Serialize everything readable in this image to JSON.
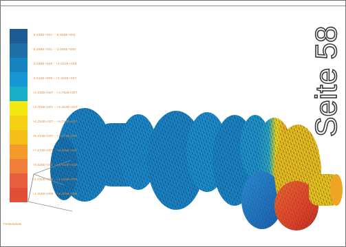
{
  "page_label": "Seite 58",
  "legend": {
    "caption": "Festensdosn",
    "entries": [
      {
        "color": "#1f5a96",
        "range": "-9.228E+001 - -5.968E+001"
      },
      {
        "color": "#1e6ea8",
        "range": "-5.968E+001 - -3.896E+000"
      },
      {
        "color": "#1784c2",
        "range": "-3.896E+000 - +4.510E+008"
      },
      {
        "color": "#1897d6",
        "range": "-4.510E+008 - +2.332E+007"
      },
      {
        "color": "#19afc9",
        "range": "+2.332E+007 - +3.792E+007"
      },
      {
        "color": "#f3e812",
        "range": "+3.792E+007 - +4.253E+007"
      },
      {
        "color": "#f6d014",
        "range": "+4.253E+007 - +5.713E+007"
      },
      {
        "color": "#f6bd18",
        "range": "+5.713E+007 - +7.174E+007"
      },
      {
        "color": "#f49a2b",
        "range": "+7.174E+007 - +8.635E+007"
      },
      {
        "color": "#ef7e39",
        "range": "+8.635E+007 - +1.010E+008"
      },
      {
        "color": "#e75f3f",
        "range": "+1.010E+008 - +1.156E+008"
      },
      {
        "color": "#e24f37",
        "range": "+1.156E+008 - +1.302E+008"
      }
    ]
  },
  "colors": {
    "mesh_blue": "#1a7fc4",
    "mesh_dark": "#0c3d6a",
    "mesh_red": "#e64a2a",
    "mesh_yellow": "#f5d21a",
    "label_text_color": "#e48a3c"
  },
  "icons": {
    "axis_triad": "coordinate-axes-icon"
  }
}
